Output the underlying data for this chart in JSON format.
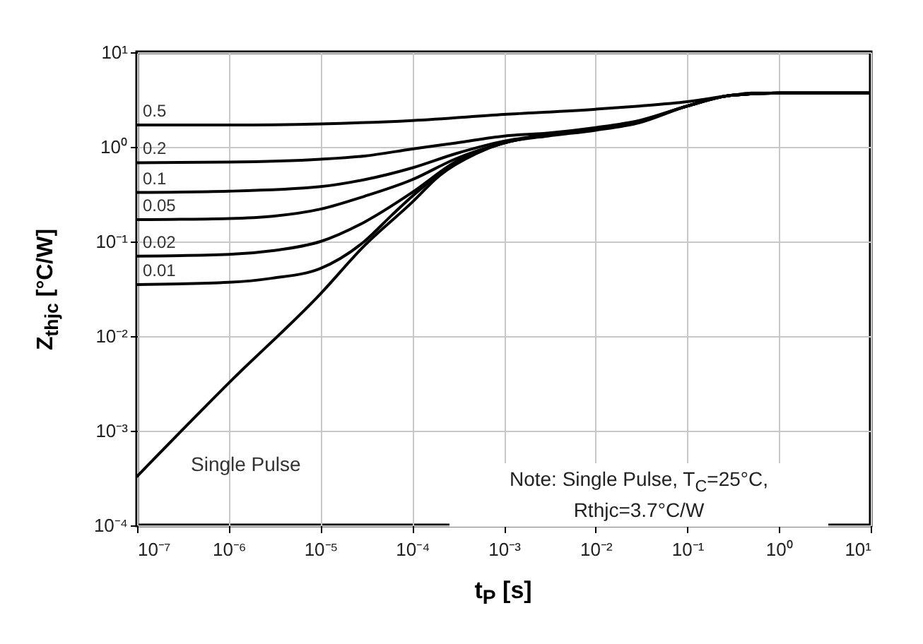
{
  "chart_data": {
    "type": "line",
    "xlabel": "t$_{P}$ [s]",
    "ylabel": "Z$_{thjc}$ [°C/W]",
    "log": "xy",
    "grid": true,
    "legend": false,
    "line_style": "solid",
    "marker": "none",
    "xlim": [
      1e-07,
      10
    ],
    "ylim": [
      0.0001,
      10
    ],
    "xticks": [
      {
        "value": 1e-07,
        "label": "10⁻⁷"
      },
      {
        "value": 1e-06,
        "label": "10⁻⁶"
      },
      {
        "value": 1e-05,
        "label": "10⁻⁵"
      },
      {
        "value": 0.0001,
        "label": "10⁻⁴"
      },
      {
        "value": 0.001,
        "label": "10⁻³"
      },
      {
        "value": 0.01,
        "label": "10⁻²"
      },
      {
        "value": 0.1,
        "label": "10⁻¹"
      },
      {
        "value": 1,
        "label": "10⁰"
      },
      {
        "value": 10,
        "label": "10¹"
      }
    ],
    "yticks": [
      {
        "value": 0.0001,
        "label": "10⁻⁴"
      },
      {
        "value": 0.001,
        "label": "10⁻³"
      },
      {
        "value": 0.01,
        "label": "10⁻²"
      },
      {
        "value": 0.1,
        "label": "10⁻¹"
      },
      {
        "value": 1,
        "label": "10⁰"
      },
      {
        "value": 10,
        "label": "10¹"
      }
    ],
    "annotations": [
      "Note: Single Pulse, T$_{C}$=25°C,",
      "Rthjc=3.7°C/W"
    ],
    "series": [
      {
        "name": "0.5",
        "color": "#000000",
        "x": [
          1e-07,
          1e-06,
          1e-05,
          0.0001,
          0.001,
          0.01,
          0.03,
          0.1,
          0.3,
          0.5,
          1,
          10
        ],
        "values": [
          1.7,
          1.7,
          1.75,
          1.9,
          2.2,
          2.5,
          2.7,
          3.0,
          3.5,
          3.7,
          3.7,
          3.7
        ]
      },
      {
        "name": "0.2",
        "color": "#000000",
        "x": [
          1e-07,
          1e-06,
          1e-05,
          3e-05,
          0.0001,
          0.0003,
          0.001,
          0.003,
          0.01,
          0.03,
          0.1,
          0.3,
          1,
          10
        ],
        "values": [
          0.68,
          0.69,
          0.74,
          0.8,
          0.95,
          1.1,
          1.3,
          1.4,
          1.6,
          1.9,
          2.7,
          3.5,
          3.7,
          3.7
        ]
      },
      {
        "name": "0.1",
        "color": "#000000",
        "x": [
          1e-07,
          1e-06,
          1e-05,
          3e-05,
          0.0001,
          0.0003,
          0.001,
          0.003,
          0.01,
          0.03,
          0.1,
          0.3,
          1,
          10
        ],
        "values": [
          0.33,
          0.34,
          0.38,
          0.45,
          0.6,
          0.85,
          1.15,
          1.35,
          1.55,
          1.85,
          2.7,
          3.5,
          3.7,
          3.7
        ]
      },
      {
        "name": "0.05",
        "color": "#000000",
        "x": [
          1e-07,
          1e-06,
          3e-06,
          1e-05,
          3e-05,
          0.0001,
          0.0003,
          0.001,
          0.003,
          0.01,
          0.03,
          0.1,
          0.3,
          1,
          10
        ],
        "values": [
          0.17,
          0.175,
          0.185,
          0.22,
          0.3,
          0.45,
          0.75,
          1.1,
          1.35,
          1.55,
          1.85,
          2.7,
          3.5,
          3.7,
          3.7
        ]
      },
      {
        "name": "0.02",
        "color": "#000000",
        "x": [
          1e-07,
          1e-06,
          3e-06,
          1e-05,
          3e-05,
          0.0001,
          0.0003,
          0.001,
          0.003,
          0.01,
          0.03,
          0.1,
          0.3,
          1,
          10
        ],
        "values": [
          0.07,
          0.073,
          0.08,
          0.1,
          0.16,
          0.33,
          0.7,
          1.1,
          1.35,
          1.55,
          1.85,
          2.7,
          3.5,
          3.7,
          3.7
        ]
      },
      {
        "name": "0.01",
        "color": "#000000",
        "x": [
          1e-07,
          1e-06,
          3e-06,
          1e-05,
          3e-05,
          6e-05,
          0.0001,
          0.0003,
          0.001,
          0.003,
          0.01,
          0.03,
          0.1,
          0.3,
          1,
          10
        ],
        "values": [
          0.035,
          0.037,
          0.041,
          0.052,
          0.1,
          0.19,
          0.3,
          0.68,
          1.1,
          1.35,
          1.55,
          1.85,
          2.7,
          3.5,
          3.7,
          3.7
        ]
      },
      {
        "name": "Single Pulse",
        "color": "#000000",
        "x": [
          1e-07,
          1e-06,
          1e-05,
          3e-05,
          0.0001,
          0.0002,
          0.0005,
          0.001,
          0.003,
          0.01,
          0.03,
          0.1,
          0.3,
          1,
          10
        ],
        "values": [
          0.00033,
          0.0032,
          0.028,
          0.09,
          0.26,
          0.5,
          0.85,
          1.1,
          1.3,
          1.5,
          1.8,
          2.7,
          3.5,
          3.7,
          3.7
        ]
      }
    ]
  }
}
